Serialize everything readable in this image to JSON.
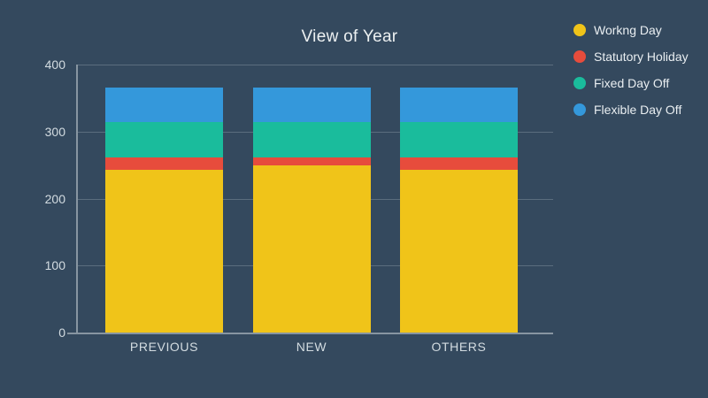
{
  "chart_data": {
    "type": "bar",
    "stacked": true,
    "title": "View of Year",
    "categories": [
      "PREVIOUS",
      "NEW",
      "OTHERS"
    ],
    "series": [
      {
        "name": "Workng Day",
        "color": "#f0c419",
        "values": [
          243,
          250,
          243
        ]
      },
      {
        "name": "Statutory Holiday",
        "color": "#e74c3c",
        "values": [
          19,
          12,
          19
        ]
      },
      {
        "name": "Fixed Day Off",
        "color": "#1abc9c",
        "values": [
          52,
          52,
          52
        ]
      },
      {
        "name": "Flexible Day Off",
        "color": "#3498db",
        "values": [
          52,
          52,
          52
        ]
      }
    ],
    "ylim": [
      0,
      400
    ],
    "yticks": [
      0,
      100,
      200,
      300,
      400
    ],
    "grid": true,
    "legend_position": "top-right",
    "xlabel": "",
    "ylabel": ""
  },
  "colors": {
    "background": "#34495e",
    "title_text": "#ecf0f1",
    "tick_text": "#d3dce1",
    "legend_text": "#e9eef1",
    "axis_line": "#8795a1",
    "grid_line": "#5b6d7e"
  }
}
